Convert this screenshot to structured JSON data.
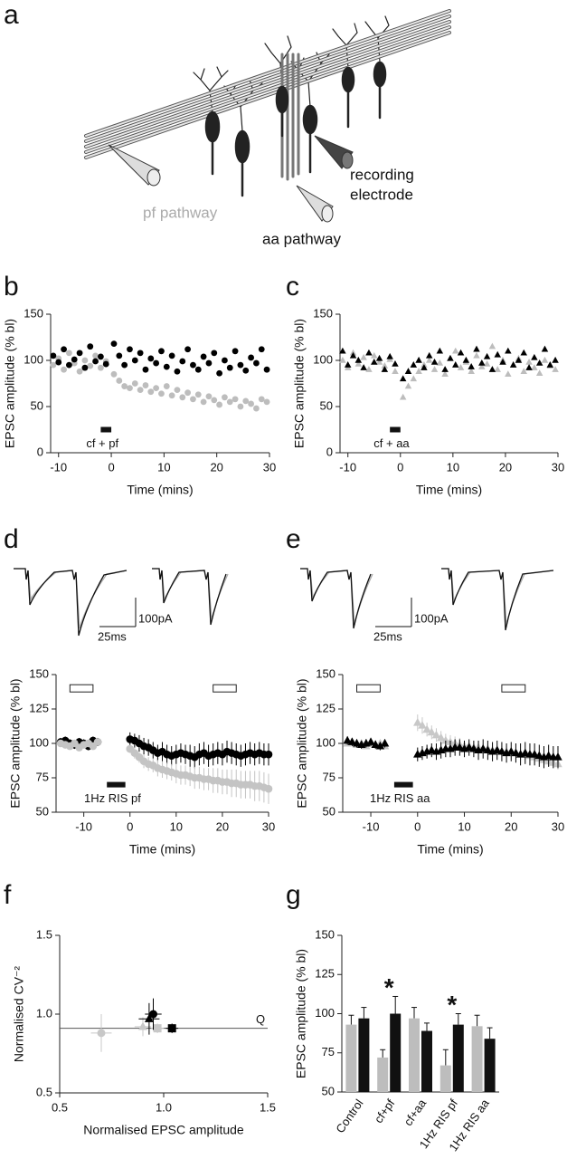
{
  "diagram": {
    "panel": "a",
    "recording_electrode": [
      "recording",
      "electrode"
    ],
    "pf_pathway": "pf pathway",
    "aa_pathway": "aa pathway"
  },
  "chart_data": [
    {
      "panel": "b",
      "type": "scatter",
      "xlabel": "Time (mins)",
      "ylabel": "EPSC amplitude (% bl)",
      "xlim": [
        -11.5,
        30
      ],
      "ylim": [
        0,
        150
      ],
      "xticks": [
        -10,
        0,
        10,
        20,
        30
      ],
      "yticks": [
        0,
        50,
        100,
        150
      ],
      "x": [
        -11,
        -10,
        -9,
        -8,
        -7,
        -6,
        -5,
        -4,
        -3,
        -2,
        -1,
        0.5,
        1.5,
        2.5,
        3.5,
        4.5,
        5.5,
        6.5,
        7.5,
        8.5,
        9.5,
        10.5,
        11.5,
        12.5,
        13.5,
        14.5,
        15.5,
        16.5,
        17.5,
        18.5,
        19.5,
        20.5,
        21.5,
        22.5,
        23.5,
        24.5,
        25.5,
        26.5,
        27.5,
        28.5,
        29.5
      ],
      "series": [
        {
          "color": "#bdbdbd",
          "marker": "circle",
          "values": [
            95,
            102,
            90,
            108,
            97,
            88,
            100,
            94,
            105,
            92,
            99,
            85,
            78,
            72,
            70,
            75,
            68,
            73,
            66,
            70,
            64,
            72,
            62,
            68,
            60,
            65,
            58,
            63,
            55,
            61,
            57,
            52,
            60,
            55,
            58,
            50,
            56,
            53,
            48,
            58,
            55
          ]
        },
        {
          "color": "#000000",
          "marker": "circle",
          "values": [
            105,
            98,
            112,
            95,
            101,
            108,
            92,
            115,
            99,
            104,
            96,
            118,
            105,
            95,
            112,
            100,
            108,
            90,
            102,
            97,
            110,
            93,
            105,
            88,
            99,
            112,
            95,
            90,
            104,
            97,
            108,
            86,
            100,
            92,
            110,
            95,
            89,
            103,
            97,
            112,
            90
          ]
        }
      ],
      "induction": {
        "label": "cf + pf",
        "start": -2,
        "end": 0,
        "y": 25
      }
    },
    {
      "panel": "c",
      "type": "scatter",
      "xlabel": "Time (mins)",
      "ylabel": "EPSC amplitude (% bl)",
      "xlim": [
        -11.5,
        30
      ],
      "ylim": [
        0,
        150
      ],
      "xticks": [
        -10,
        0,
        10,
        20,
        30
      ],
      "yticks": [
        0,
        50,
        100,
        150
      ],
      "x": [
        -11,
        -10,
        -9,
        -8,
        -7,
        -6,
        -5,
        -4,
        -3,
        -2,
        -1,
        0.5,
        1.5,
        2.5,
        3.5,
        4.5,
        5.5,
        6.5,
        7.5,
        8.5,
        9.5,
        10.5,
        11.5,
        12.5,
        13.5,
        14.5,
        15.5,
        16.5,
        17.5,
        18.5,
        19.5,
        20.5,
        21.5,
        22.5,
        23.5,
        24.5,
        25.5,
        26.5,
        27.5,
        28.5,
        29.5
      ],
      "series": [
        {
          "color": "#bdbdbd",
          "marker": "triangle",
          "values": [
            100,
            92,
            108,
            96,
            103,
            90,
            105,
            98,
            94,
            101,
            88,
            60,
            72,
            80,
            88,
            95,
            100,
            90,
            97,
            85,
            102,
            110,
            92,
            98,
            88,
            105,
            93,
            96,
            115,
            90,
            100,
            85,
            95,
            102,
            88,
            98,
            92,
            86,
            100,
            94,
            90
          ]
        },
        {
          "color": "#000000",
          "marker": "triangle",
          "values": [
            110,
            95,
            105,
            100,
            92,
            108,
            98,
            102,
            90,
            104,
            96,
            80,
            88,
            95,
            100,
            92,
            105,
            98,
            110,
            90,
            102,
            95,
            108,
            100,
            93,
            112,
            97,
            104,
            90,
            106,
            98,
            110,
            95,
            100,
            108,
            92,
            103,
            97,
            112,
            95,
            100
          ]
        }
      ],
      "induction": {
        "label": "cf + aa",
        "start": -2,
        "end": 0,
        "y": 25
      }
    },
    {
      "panel": "d",
      "type": "errorbar",
      "xlabel": "Time (mins)",
      "ylabel": "EPSC amplitude (% bl)",
      "xlim": [
        -16,
        30
      ],
      "ylim": [
        50,
        150
      ],
      "xticks": [
        -10,
        0,
        10,
        20,
        30
      ],
      "yticks": [
        50,
        75,
        100,
        125,
        150
      ],
      "x": [
        -15,
        -14,
        -13,
        -12,
        -11,
        -10,
        -9,
        -8,
        -7,
        0,
        1,
        2,
        3,
        4,
        5,
        6,
        7,
        8,
        9,
        10,
        11,
        12,
        13,
        14,
        15,
        16,
        17,
        18,
        19,
        20,
        21,
        22,
        23,
        24,
        25,
        26,
        27,
        28,
        29,
        30
      ],
      "series": [
        {
          "color": "#000000",
          "marker": "circle",
          "values": [
            101,
            102,
            100,
            99,
            101,
            100,
            98,
            102,
            101,
            103,
            102,
            100,
            98,
            97,
            95,
            93,
            94,
            92,
            91,
            92,
            93,
            92,
            91,
            90,
            92,
            93,
            91,
            92,
            93,
            92,
            94,
            93,
            92,
            91,
            92,
            93,
            92,
            93,
            92,
            92
          ],
          "errors": [
            3,
            3,
            3,
            3,
            3,
            3,
            3,
            3,
            3,
            5,
            5,
            6,
            6,
            6,
            6,
            6,
            7,
            7,
            7,
            7,
            7,
            7,
            8,
            8,
            8,
            8,
            8,
            8,
            8,
            8,
            8,
            8,
            8,
            8,
            8,
            8,
            8,
            8,
            8,
            8
          ]
        },
        {
          "color": "#c4c4c4",
          "marker": "circle",
          "values": [
            100,
            99,
            98,
            100,
            97,
            99,
            100,
            98,
            101,
            96,
            93,
            90,
            87,
            85,
            84,
            82,
            81,
            80,
            79,
            78,
            77,
            77,
            76,
            75,
            75,
            74,
            74,
            73,
            73,
            72,
            72,
            71,
            71,
            70,
            70,
            70,
            69,
            69,
            68,
            67
          ],
          "errors": [
            2,
            2,
            2,
            2,
            2,
            2,
            2,
            2,
            2,
            3,
            4,
            4,
            5,
            5,
            5,
            6,
            6,
            6,
            6,
            7,
            7,
            7,
            7,
            8,
            8,
            8,
            8,
            9,
            9,
            9,
            9,
            10,
            10,
            10,
            10,
            10,
            11,
            11,
            11,
            11
          ]
        }
      ],
      "windows": [
        {
          "start": -13,
          "end": -8
        },
        {
          "start": 18,
          "end": 23
        }
      ],
      "window_y": 140,
      "induction": {
        "label": "1Hz RIS pf",
        "start": -5,
        "end": -1,
        "y": 70
      },
      "scale_bar": {
        "current": "100pA",
        "time": "25ms"
      }
    },
    {
      "panel": "e",
      "type": "errorbar",
      "xlabel": "Time (mins)",
      "ylabel": "EPSC amplitude (% bl)",
      "xlim": [
        -16,
        30
      ],
      "ylim": [
        50,
        150
      ],
      "xticks": [
        -10,
        0,
        10,
        20,
        30
      ],
      "yticks": [
        50,
        75,
        100,
        125,
        150
      ],
      "x": [
        -15,
        -14,
        -13,
        -12,
        -11,
        -10,
        -9,
        -8,
        -7,
        0,
        1,
        2,
        3,
        4,
        5,
        6,
        7,
        8,
        9,
        10,
        11,
        12,
        13,
        14,
        15,
        16,
        17,
        18,
        19,
        20,
        21,
        22,
        23,
        24,
        25,
        26,
        27,
        28,
        29,
        30
      ],
      "series": [
        {
          "color": "#c8c8c8",
          "marker": "triangle",
          "values": [
            100,
            101,
            99,
            100,
            98,
            100,
            99,
            100,
            98,
            115,
            113,
            110,
            108,
            106,
            104,
            102,
            101,
            100,
            99,
            98,
            98,
            97,
            97,
            96,
            96,
            95,
            95,
            94,
            94,
            93,
            93,
            92,
            92,
            91,
            90,
            89,
            88,
            87,
            86,
            85
          ],
          "errors": [
            2,
            2,
            2,
            2,
            2,
            2,
            2,
            2,
            2,
            6,
            6,
            5,
            5,
            5,
            5,
            5,
            5,
            5,
            5,
            4,
            4,
            4,
            4,
            4,
            4,
            4,
            4,
            4,
            4,
            4,
            4,
            4,
            4,
            4,
            4,
            4,
            4,
            4,
            4,
            4
          ]
        },
        {
          "color": "#000000",
          "marker": "triangle",
          "values": [
            102,
            101,
            100,
            99,
            100,
            101,
            99,
            98,
            100,
            92,
            93,
            94,
            95,
            94,
            95,
            96,
            96,
            97,
            97,
            96,
            97,
            96,
            95,
            96,
            95,
            94,
            95,
            94,
            93,
            94,
            93,
            92,
            93,
            92,
            92,
            91,
            90,
            91,
            90,
            90
          ],
          "errors": [
            3,
            3,
            3,
            3,
            3,
            3,
            3,
            3,
            3,
            5,
            5,
            5,
            5,
            6,
            6,
            6,
            6,
            6,
            6,
            6,
            6,
            6,
            7,
            7,
            7,
            7,
            7,
            7,
            7,
            7,
            7,
            8,
            8,
            8,
            8,
            8,
            8,
            8,
            8,
            8
          ]
        }
      ],
      "windows": [
        {
          "start": -13,
          "end": -8
        },
        {
          "start": 18,
          "end": 23
        }
      ],
      "window_y": 140,
      "induction": {
        "label": "1Hz RIS aa",
        "start": -5,
        "end": -1,
        "y": 70
      },
      "scale_bar": {
        "current": "100pA",
        "time": "25ms"
      }
    },
    {
      "panel": "f",
      "type": "crossplot",
      "xlabel": "Normalised EPSC amplitude",
      "ylabel": "Normalised CV⁻²",
      "xlim": [
        0.5,
        1.5
      ],
      "ylim": [
        0.5,
        1.5
      ],
      "xticks": [
        0.5,
        {
          "value": 1,
          "label": "1.0"
        },
        1.5
      ],
      "yticks": [
        0.5,
        {
          "value": 1,
          "label": "1.0"
        },
        1.5
      ],
      "reference_line": {
        "y": 0.91,
        "label": "Q"
      },
      "points": [
        {
          "x": 0.7,
          "y": 0.88,
          "xerr": 0.05,
          "yerr": 0.12,
          "color": "#c8c8c8",
          "marker": "circle"
        },
        {
          "x": 0.9,
          "y": 0.92,
          "xerr": 0.04,
          "yerr": 0.06,
          "color": "#c8c8c8",
          "marker": "triangle"
        },
        {
          "x": 0.97,
          "y": 0.91,
          "xerr": 0.03,
          "yerr": 0.03,
          "color": "#c8c8c8",
          "marker": "square"
        },
        {
          "x": 0.93,
          "y": 0.97,
          "xerr": 0.05,
          "yerr": 0.1,
          "color": "#000000",
          "marker": "triangle"
        },
        {
          "x": 0.95,
          "y": 1.0,
          "xerr": 0.04,
          "yerr": 0.1,
          "color": "#000000",
          "marker": "circle"
        },
        {
          "x": 1.04,
          "y": 0.91,
          "xerr": 0.03,
          "yerr": 0.03,
          "color": "#000000",
          "marker": "square"
        }
      ]
    },
    {
      "panel": "g",
      "type": "bar",
      "ylabel": "EPSC amplitude (% bl)",
      "categories": [
        "Control",
        "cf+pf",
        "cf+aa",
        "1Hz RIS pf",
        "1Hz RIS aa"
      ],
      "ylim": [
        50,
        150
      ],
      "yticks": [
        50,
        75,
        100,
        125,
        150
      ],
      "series": [
        {
          "color": "#bdbdbd",
          "values": [
            93,
            72,
            97,
            67,
            92
          ],
          "errors": [
            6,
            5,
            7,
            10,
            7
          ]
        },
        {
          "color": "#111111",
          "values": [
            97,
            100,
            89,
            93,
            84
          ],
          "errors": [
            7,
            11,
            5,
            7,
            7
          ]
        }
      ],
      "annotations": [
        {
          "text": "*",
          "category": "cf+pf"
        },
        {
          "text": "*",
          "category": "1Hz RIS pf"
        }
      ]
    }
  ]
}
